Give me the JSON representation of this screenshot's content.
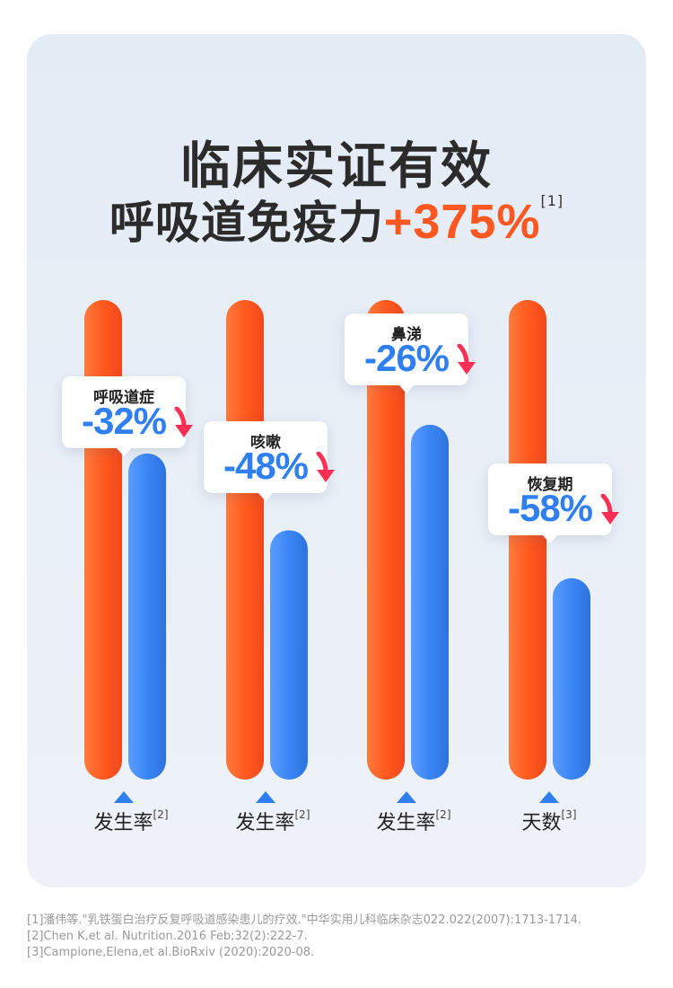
{
  "title": {
    "line1": "临床实证有效",
    "line2_text": "呼吸道免疫力",
    "line2_highlight": "+375%",
    "line2_ref": "[1]"
  },
  "colors": {
    "orange": "#ff5722",
    "blue": "#2f7ff0",
    "accent_red": "#ff2e55"
  },
  "chart_data": {
    "type": "bar",
    "groups": [
      {
        "label": "呼吸道症",
        "change": "-32%",
        "xlabel": "发生率",
        "ref": "[2]",
        "baseline": 100,
        "treated": 68
      },
      {
        "label": "咳嗽",
        "change": "-48%",
        "xlabel": "发生率",
        "ref": "[2]",
        "baseline": 100,
        "treated": 52
      },
      {
        "label": "鼻涕",
        "change": "-26%",
        "xlabel": "发生率",
        "ref": "[2]",
        "baseline": 100,
        "treated": 74
      },
      {
        "label": "恢复期",
        "change": "-58%",
        "xlabel": "天数",
        "ref": "[3]",
        "baseline": 100,
        "treated": 42
      }
    ],
    "ylim": [
      0,
      100
    ]
  },
  "references": [
    "[1]潘伟等.\"乳铁蛋白治疗反复呼吸道感染患儿的疗效.\"中华实用儿科临床杂志022.022(2007):1713-1714.",
    "[2]Chen K,et al. Nutrition.2016 Feb;32(2):222-7.",
    "[3]Campione,Elena,et al.BioRxiv (2020):2020-08."
  ]
}
